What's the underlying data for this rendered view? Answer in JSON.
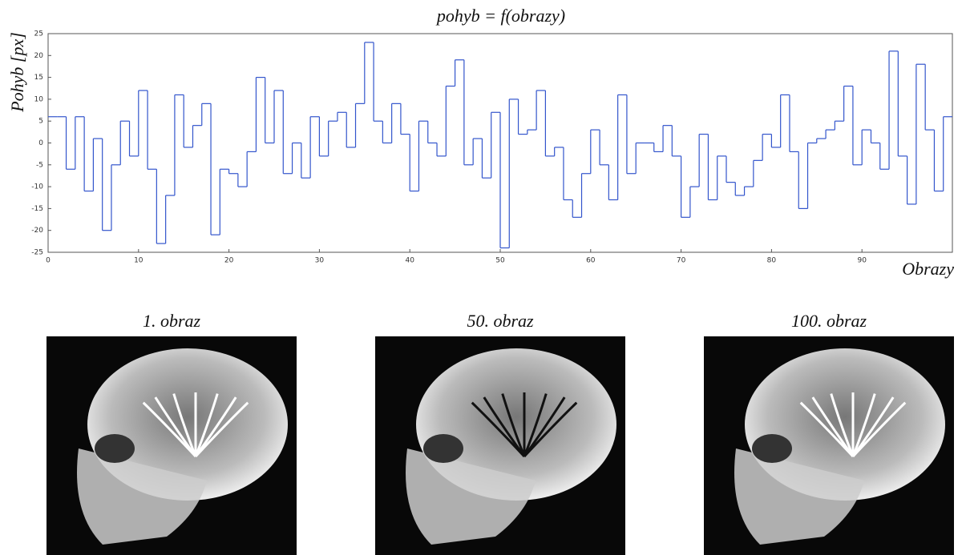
{
  "chart_data": {
    "type": "step",
    "title": "pohyb = f(obrazy)",
    "xlabel": "Obrazy",
    "ylabel": "Pohyb [px]",
    "x": [
      0,
      1,
      2,
      3,
      4,
      5,
      6,
      7,
      8,
      9,
      10,
      11,
      12,
      13,
      14,
      15,
      16,
      17,
      18,
      19,
      20,
      21,
      22,
      23,
      24,
      25,
      26,
      27,
      28,
      29,
      30,
      31,
      32,
      33,
      34,
      35,
      36,
      37,
      38,
      39,
      40,
      41,
      42,
      43,
      44,
      45,
      46,
      47,
      48,
      49,
      50,
      51,
      52,
      53,
      54,
      55,
      56,
      57,
      58,
      59,
      60,
      61,
      62,
      63,
      64,
      65,
      66,
      67,
      68,
      69,
      70,
      71,
      72,
      73,
      74,
      75,
      76,
      77,
      78,
      79,
      80,
      81,
      82,
      83,
      84,
      85,
      86,
      87,
      88,
      89,
      90,
      91,
      92,
      93,
      94,
      95,
      96,
      97,
      98,
      99
    ],
    "values": [
      6,
      6,
      -6,
      6,
      -11,
      1,
      -20,
      -5,
      5,
      -3,
      12,
      -6,
      -23,
      -12,
      11,
      -1,
      4,
      9,
      -21,
      -6,
      -7,
      -10,
      -2,
      15,
      0,
      12,
      -7,
      0,
      -8,
      6,
      -3,
      5,
      7,
      -1,
      9,
      23,
      5,
      0,
      9,
      2,
      -11,
      5,
      0,
      -3,
      13,
      19,
      -5,
      1,
      -8,
      7,
      -24,
      10,
      2,
      3,
      12,
      -3,
      -1,
      -13,
      -17,
      -7,
      3,
      -5,
      -13,
      11,
      -7,
      0,
      0,
      -2,
      4,
      -3,
      -17,
      -10,
      2,
      -13,
      -3,
      -9,
      -12,
      -10,
      -4,
      2,
      -1,
      11,
      -2,
      -15,
      0,
      1,
      3,
      5,
      13,
      -5,
      3,
      0,
      -6,
      21,
      -3,
      -14,
      18,
      3,
      -11,
      6
    ],
    "color": "#3355cc",
    "xlim": [
      0,
      100
    ],
    "xticks": [
      0,
      10,
      20,
      30,
      40,
      50,
      60,
      70,
      80,
      90
    ],
    "ylim": [
      -25,
      25
    ],
    "yticks": [
      -25,
      -20,
      -15,
      -10,
      -5,
      0,
      5,
      10,
      15,
      20,
      25
    ]
  },
  "panels": [
    {
      "caption": "1. obraz"
    },
    {
      "caption": "50. obraz"
    },
    {
      "caption": "100. obraz"
    }
  ]
}
